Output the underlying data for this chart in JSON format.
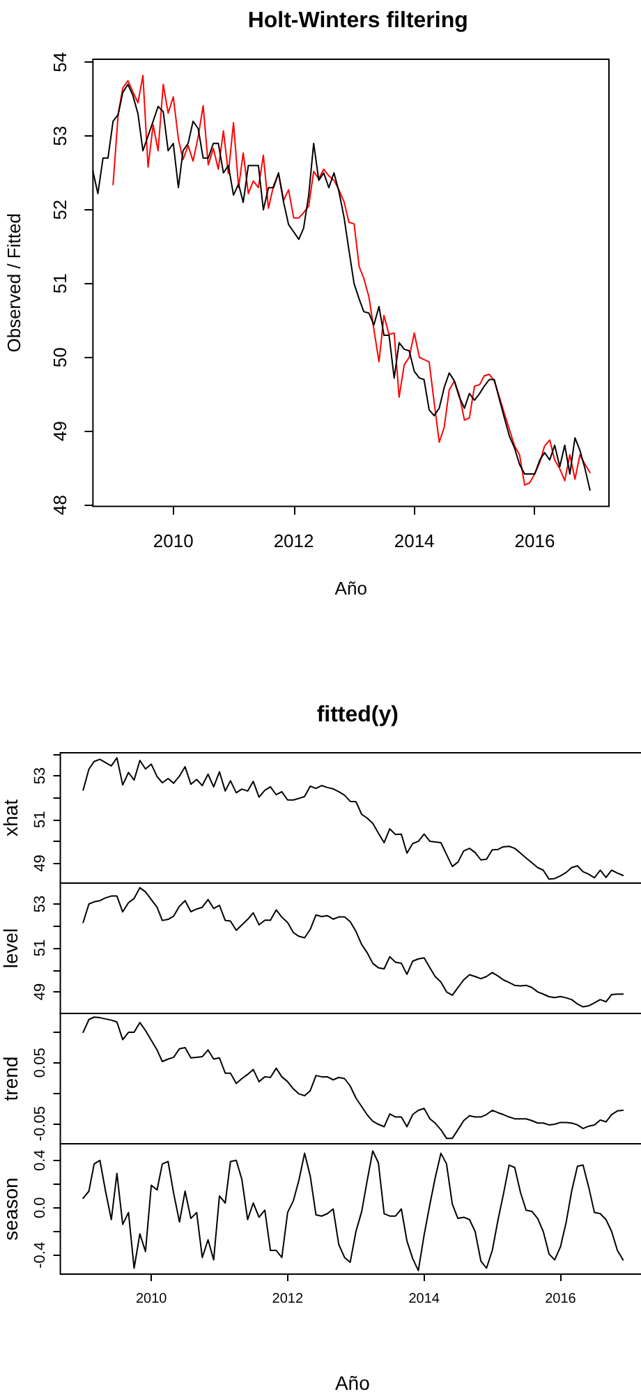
{
  "chart_data": [
    {
      "type": "line",
      "title": "Holt-Winters filtering",
      "xlabel": "Año",
      "ylabel": "Observed / Fitted",
      "x": [
        "2008-09",
        "2008-10",
        "2008-11",
        "2008-12",
        "2009-01",
        "2009-02",
        "2009-03",
        "2009-04",
        "2009-05",
        "2009-06",
        "2009-07",
        "2009-08",
        "2009-09",
        "2009-10",
        "2009-11",
        "2009-12",
        "2010-01",
        "2010-02",
        "2010-03",
        "2010-04",
        "2010-05",
        "2010-06",
        "2010-07",
        "2010-08",
        "2010-09",
        "2010-10",
        "2010-11",
        "2010-12",
        "2011-01",
        "2011-02",
        "2011-03",
        "2011-04",
        "2011-05",
        "2011-06",
        "2011-07",
        "2011-08",
        "2011-09",
        "2011-10",
        "2011-11",
        "2011-12",
        "2012-01",
        "2012-02",
        "2012-03",
        "2012-04",
        "2012-05",
        "2012-06",
        "2012-07",
        "2012-08",
        "2012-09",
        "2012-10",
        "2012-11",
        "2012-12",
        "2013-01",
        "2013-02",
        "2013-03",
        "2013-04",
        "2013-05",
        "2013-06",
        "2013-07",
        "2013-08",
        "2013-09",
        "2013-10",
        "2013-11",
        "2013-12",
        "2014-01",
        "2014-02",
        "2014-03",
        "2014-04",
        "2014-05",
        "2014-06",
        "2014-07",
        "2014-08",
        "2014-09",
        "2014-10",
        "2014-11",
        "2014-12",
        "2015-01",
        "2015-02",
        "2015-03",
        "2015-04",
        "2015-05",
        "2015-06",
        "2015-07",
        "2015-08",
        "2015-09",
        "2015-10",
        "2015-11",
        "2015-12",
        "2016-01",
        "2016-02",
        "2016-03",
        "2016-04",
        "2016-05",
        "2016-06",
        "2016-07",
        "2016-08",
        "2016-09",
        "2016-10",
        "2016-11",
        "2016-12"
      ],
      "series": [
        {
          "color": "#ff0000",
          "values": [
            null,
            null,
            null,
            null,
            52.34,
            53.3,
            53.65,
            53.75,
            53.6,
            53.45,
            53.82,
            52.58,
            53.15,
            52.8,
            53.7,
            53.31,
            53.53,
            52.96,
            52.68,
            52.87,
            52.66,
            52.99,
            53.41,
            52.61,
            52.83,
            52.55,
            53.07,
            52.49,
            53.18,
            52.3,
            52.77,
            52.22,
            52.39,
            52.3,
            52.74,
            52.02,
            52.33,
            52.49,
            52.13,
            52.27,
            51.89,
            51.89,
            51.96,
            52.05,
            52.52,
            52.42,
            52.55,
            52.46,
            52.4,
            52.27,
            52.11,
            51.83,
            51.81,
            51.23,
            51.07,
            50.82,
            50.38,
            49.94,
            50.57,
            50.31,
            50.33,
            49.46,
            49.9,
            50.0,
            50.33,
            50.0,
            49.97,
            49.94,
            49.4,
            48.85,
            49.05,
            49.56,
            49.68,
            49.49,
            49.15,
            49.18,
            49.61,
            49.63,
            49.75,
            49.77,
            49.68,
            49.46,
            49.24,
            49.02,
            48.8,
            48.68,
            48.27,
            48.3,
            48.42,
            48.58,
            48.8,
            48.88,
            48.61,
            48.49,
            48.33,
            48.68,
            48.35,
            48.68,
            48.55,
            48.44
          ]
        },
        {
          "color": "#000000",
          "values": [
            52.52,
            52.22,
            52.7,
            52.7,
            53.2,
            53.29,
            53.59,
            53.7,
            53.55,
            53.3,
            52.8,
            53.0,
            53.2,
            53.4,
            53.33,
            52.8,
            52.9,
            52.3,
            52.8,
            52.9,
            53.2,
            53.1,
            52.7,
            52.7,
            52.9,
            52.9,
            52.5,
            52.6,
            52.2,
            52.35,
            52.1,
            52.6,
            52.6,
            52.6,
            52.0,
            52.3,
            52.3,
            52.5,
            52.1,
            51.8,
            51.7,
            51.6,
            51.75,
            52.2,
            52.9,
            52.4,
            52.5,
            52.3,
            52.5,
            52.25,
            51.9,
            51.45,
            51.0,
            50.79,
            50.62,
            50.6,
            50.44,
            50.69,
            50.3,
            50.3,
            49.72,
            50.2,
            50.11,
            50.09,
            49.81,
            49.72,
            49.7,
            49.29,
            49.21,
            49.31,
            49.59,
            49.79,
            49.68,
            49.46,
            49.31,
            49.51,
            49.42,
            49.51,
            49.61,
            49.7,
            49.7,
            49.43,
            49.18,
            48.93,
            48.77,
            48.55,
            48.42,
            48.42,
            48.42,
            48.61,
            48.71,
            48.61,
            48.81,
            48.52,
            48.81,
            48.42,
            48.91,
            48.74,
            48.49,
            48.2
          ]
        }
      ],
      "xlim": [
        "2008-09-01",
        "2017-03-26"
      ],
      "xticks": [
        "2010",
        "2012",
        "2014",
        "2016"
      ],
      "ylim": [
        47.98,
        54.04
      ],
      "yticks": [
        48,
        49,
        50,
        51,
        52,
        53,
        54
      ]
    },
    {
      "type": "line",
      "title": "fitted(y)",
      "ylabel": "xhat",
      "x": [
        "2009-01",
        "2009-02",
        "2009-03",
        "2009-04",
        "2009-05",
        "2009-06",
        "2009-07",
        "2009-08",
        "2009-09",
        "2009-10",
        "2009-11",
        "2009-12",
        "2010-01",
        "2010-02",
        "2010-03",
        "2010-04",
        "2010-05",
        "2010-06",
        "2010-07",
        "2010-08",
        "2010-09",
        "2010-10",
        "2010-11",
        "2010-12",
        "2011-01",
        "2011-02",
        "2011-03",
        "2011-04",
        "2011-05",
        "2011-06",
        "2011-07",
        "2011-08",
        "2011-09",
        "2011-10",
        "2011-11",
        "2011-12",
        "2012-01",
        "2012-02",
        "2012-03",
        "2012-04",
        "2012-05",
        "2012-06",
        "2012-07",
        "2012-08",
        "2012-09",
        "2012-10",
        "2012-11",
        "2012-12",
        "2013-01",
        "2013-02",
        "2013-03",
        "2013-04",
        "2013-05",
        "2013-06",
        "2013-07",
        "2013-08",
        "2013-09",
        "2013-10",
        "2013-11",
        "2013-12",
        "2014-01",
        "2014-02",
        "2014-03",
        "2014-04",
        "2014-05",
        "2014-06",
        "2014-07",
        "2014-08",
        "2014-09",
        "2014-10",
        "2014-11",
        "2014-12",
        "2015-01",
        "2015-02",
        "2015-03",
        "2015-04",
        "2015-05",
        "2015-06",
        "2015-07",
        "2015-08",
        "2015-09",
        "2015-10",
        "2015-11",
        "2015-12",
        "2016-01",
        "2016-02",
        "2016-03",
        "2016-04",
        "2016-05",
        "2016-06",
        "2016-07",
        "2016-08",
        "2016-09",
        "2016-10",
        "2016-11",
        "2016-12"
      ],
      "series": [
        {
          "color": "#000000",
          "values": [
            52.34,
            53.3,
            53.65,
            53.75,
            53.6,
            53.45,
            53.82,
            52.58,
            53.15,
            52.8,
            53.7,
            53.31,
            53.53,
            52.96,
            52.68,
            52.87,
            52.66,
            52.99,
            53.41,
            52.61,
            52.83,
            52.55,
            53.07,
            52.49,
            53.18,
            52.3,
            52.77,
            52.22,
            52.39,
            52.3,
            52.74,
            52.02,
            52.33,
            52.49,
            52.13,
            52.27,
            51.89,
            51.89,
            51.96,
            52.05,
            52.52,
            52.42,
            52.55,
            52.46,
            52.4,
            52.27,
            52.11,
            51.83,
            51.81,
            51.23,
            51.07,
            50.82,
            50.38,
            49.94,
            50.57,
            50.31,
            50.33,
            49.46,
            49.9,
            50.0,
            50.33,
            50.0,
            49.97,
            49.94,
            49.4,
            48.85,
            49.05,
            49.56,
            49.68,
            49.49,
            49.15,
            49.18,
            49.61,
            49.63,
            49.75,
            49.77,
            49.68,
            49.46,
            49.24,
            49.02,
            48.8,
            48.68,
            48.27,
            48.3,
            48.42,
            48.58,
            48.8,
            48.88,
            48.61,
            48.49,
            48.33,
            48.68,
            48.35,
            48.68,
            48.55,
            48.44
          ]
        }
      ],
      "xlim": [
        "2008-09-01",
        "2017-03-26"
      ],
      "ylim": [
        48.09,
        54.05
      ],
      "yticks": [
        49,
        {
          "value": 50,
          "label": null
        },
        51,
        {
          "value": 52,
          "label": null
        },
        53,
        {
          "value": 54,
          "label": null
        }
      ],
      "tick_labels": "y"
    },
    {
      "type": "line",
      "ylabel": "level",
      "x": [
        "2009-01",
        "2009-02",
        "2009-03",
        "2009-04",
        "2009-05",
        "2009-06",
        "2009-07",
        "2009-08",
        "2009-09",
        "2009-10",
        "2009-11",
        "2009-12",
        "2010-01",
        "2010-02",
        "2010-03",
        "2010-04",
        "2010-05",
        "2010-06",
        "2010-07",
        "2010-08",
        "2010-09",
        "2010-10",
        "2010-11",
        "2010-12",
        "2011-01",
        "2011-02",
        "2011-03",
        "2011-04",
        "2011-05",
        "2011-06",
        "2011-07",
        "2011-08",
        "2011-09",
        "2011-10",
        "2011-11",
        "2011-12",
        "2012-01",
        "2012-02",
        "2012-03",
        "2012-04",
        "2012-05",
        "2012-06",
        "2012-07",
        "2012-08",
        "2012-09",
        "2012-10",
        "2012-11",
        "2012-12",
        "2013-01",
        "2013-02",
        "2013-03",
        "2013-04",
        "2013-05",
        "2013-06",
        "2013-07",
        "2013-08",
        "2013-09",
        "2013-10",
        "2013-11",
        "2013-12",
        "2014-01",
        "2014-02",
        "2014-03",
        "2014-04",
        "2014-05",
        "2014-06",
        "2014-07",
        "2014-08",
        "2014-09",
        "2014-10",
        "2014-11",
        "2014-12",
        "2015-01",
        "2015-02",
        "2015-03",
        "2015-04",
        "2015-05",
        "2015-06",
        "2015-07",
        "2015-08",
        "2015-09",
        "2015-10",
        "2015-11",
        "2015-12",
        "2016-01",
        "2016-02",
        "2016-03",
        "2016-04",
        "2016-05",
        "2016-06",
        "2016-07",
        "2016-08",
        "2016-09",
        "2016-10",
        "2016-11",
        "2016-12"
      ],
      "series": [
        {
          "color": "#000000",
          "values": [
            52.16,
            53.0,
            53.1,
            53.15,
            53.28,
            53.36,
            53.36,
            52.64,
            53.06,
            53.25,
            53.74,
            53.55,
            53.2,
            52.85,
            52.25,
            52.3,
            52.45,
            52.9,
            53.15,
            52.65,
            52.77,
            52.85,
            53.2,
            52.8,
            52.94,
            52.25,
            52.22,
            51.8,
            52.05,
            52.3,
            52.6,
            52.05,
            52.26,
            52.26,
            52.73,
            52.4,
            52.16,
            51.7,
            51.53,
            51.46,
            51.84,
            52.5,
            52.43,
            52.47,
            52.31,
            52.41,
            52.41,
            52.2,
            51.75,
            51.15,
            50.8,
            50.3,
            50.1,
            50.05,
            50.6,
            50.35,
            50.3,
            49.8,
            50.4,
            50.5,
            50.55,
            50.1,
            49.7,
            49.45,
            49.0,
            48.85,
            49.2,
            49.55,
            49.78,
            49.7,
            49.6,
            49.7,
            49.88,
            49.72,
            49.55,
            49.43,
            49.3,
            49.27,
            49.3,
            49.2,
            49.0,
            48.9,
            48.78,
            48.74,
            48.79,
            48.73,
            48.65,
            48.45,
            48.32,
            48.37,
            48.5,
            48.65,
            48.55,
            48.88,
            48.9,
            48.9
          ]
        }
      ],
      "xlim": [
        "2008-09-01",
        "2017-03-26"
      ],
      "ylim": [
        48.02,
        53.95
      ],
      "yticks": [
        49,
        {
          "value": 50,
          "label": null
        },
        51,
        {
          "value": 52,
          "label": null
        },
        53
      ],
      "tick_labels": "y"
    },
    {
      "type": "line",
      "ylabel": "trend",
      "x": [
        "2009-01",
        "2009-02",
        "2009-03",
        "2009-04",
        "2009-05",
        "2009-06",
        "2009-07",
        "2009-08",
        "2009-09",
        "2009-10",
        "2009-11",
        "2009-12",
        "2010-01",
        "2010-02",
        "2010-03",
        "2010-04",
        "2010-05",
        "2010-06",
        "2010-07",
        "2010-08",
        "2010-09",
        "2010-10",
        "2010-11",
        "2010-12",
        "2011-01",
        "2011-02",
        "2011-03",
        "2011-04",
        "2011-05",
        "2011-06",
        "2011-07",
        "2011-08",
        "2011-09",
        "2011-10",
        "2011-11",
        "2011-12",
        "2012-01",
        "2012-02",
        "2012-03",
        "2012-04",
        "2012-05",
        "2012-06",
        "2012-07",
        "2012-08",
        "2012-09",
        "2012-10",
        "2012-11",
        "2012-12",
        "2013-01",
        "2013-02",
        "2013-03",
        "2013-04",
        "2013-05",
        "2013-06",
        "2013-07",
        "2013-08",
        "2013-09",
        "2013-10",
        "2013-11",
        "2013-12",
        "2014-01",
        "2014-02",
        "2014-03",
        "2014-04",
        "2014-05",
        "2014-06",
        "2014-07",
        "2014-08",
        "2014-09",
        "2014-10",
        "2014-11",
        "2014-12",
        "2015-01",
        "2015-02",
        "2015-03",
        "2015-04",
        "2015-05",
        "2015-06",
        "2015-07",
        "2015-08",
        "2015-09",
        "2015-10",
        "2015-11",
        "2015-12",
        "2016-01",
        "2016-02",
        "2016-03",
        "2016-04",
        "2016-05",
        "2016-06",
        "2016-07",
        "2016-08",
        "2016-09",
        "2016-10",
        "2016-11",
        "2016-12"
      ],
      "series": [
        {
          "color": "#000000",
          "values": [
            0.1,
            0.121,
            0.125,
            0.124,
            0.122,
            0.12,
            0.117,
            0.088,
            0.1,
            0.1,
            0.116,
            0.103,
            0.087,
            0.071,
            0.052,
            0.056,
            0.059,
            0.073,
            0.075,
            0.058,
            0.059,
            0.06,
            0.071,
            0.056,
            0.058,
            0.033,
            0.033,
            0.016,
            0.024,
            0.031,
            0.039,
            0.019,
            0.027,
            0.026,
            0.041,
            0.027,
            0.019,
            0.007,
            -0.001,
            -0.004,
            0.004,
            0.029,
            0.027,
            0.027,
            0.022,
            0.026,
            0.024,
            0.012,
            -0.008,
            -0.022,
            -0.035,
            -0.046,
            -0.051,
            -0.055,
            -0.034,
            -0.039,
            -0.039,
            -0.055,
            -0.035,
            -0.028,
            -0.025,
            -0.042,
            -0.049,
            -0.06,
            -0.074,
            -0.074,
            -0.06,
            -0.045,
            -0.037,
            -0.039,
            -0.039,
            -0.035,
            -0.028,
            -0.032,
            -0.035,
            -0.039,
            -0.042,
            -0.042,
            -0.042,
            -0.045,
            -0.049,
            -0.049,
            -0.052,
            -0.051,
            -0.048,
            -0.048,
            -0.049,
            -0.052,
            -0.058,
            -0.054,
            -0.052,
            -0.044,
            -0.047,
            -0.035,
            -0.029,
            -0.028
          ]
        }
      ],
      "xlim": [
        "2008-09-01",
        "2017-03-26"
      ],
      "ylim": [
        -0.083,
        0.131
      ],
      "yticks": [
        -0.05,
        {
          "value": 0,
          "label": null
        },
        0.05,
        {
          "value": 0.1,
          "label": null
        }
      ],
      "tick_labels": "y"
    },
    {
      "type": "line",
      "ylabel": "season",
      "xlabel": "Año",
      "x": [
        "2009-01",
        "2009-02",
        "2009-03",
        "2009-04",
        "2009-05",
        "2009-06",
        "2009-07",
        "2009-08",
        "2009-09",
        "2009-10",
        "2009-11",
        "2009-12",
        "2010-01",
        "2010-02",
        "2010-03",
        "2010-04",
        "2010-05",
        "2010-06",
        "2010-07",
        "2010-08",
        "2010-09",
        "2010-10",
        "2010-11",
        "2010-12",
        "2011-01",
        "2011-02",
        "2011-03",
        "2011-04",
        "2011-05",
        "2011-06",
        "2011-07",
        "2011-08",
        "2011-09",
        "2011-10",
        "2011-11",
        "2011-12",
        "2012-01",
        "2012-02",
        "2012-03",
        "2012-04",
        "2012-05",
        "2012-06",
        "2012-07",
        "2012-08",
        "2012-09",
        "2012-10",
        "2012-11",
        "2012-12",
        "2013-01",
        "2013-02",
        "2013-03",
        "2013-04",
        "2013-05",
        "2013-06",
        "2013-07",
        "2013-08",
        "2013-09",
        "2013-10",
        "2013-11",
        "2013-12",
        "2014-01",
        "2014-02",
        "2014-03",
        "2014-04",
        "2014-05",
        "2014-06",
        "2014-07",
        "2014-08",
        "2014-09",
        "2014-10",
        "2014-11",
        "2014-12",
        "2015-01",
        "2015-02",
        "2015-03",
        "2015-04",
        "2015-05",
        "2015-06",
        "2015-07",
        "2015-08",
        "2015-09",
        "2015-10",
        "2015-11",
        "2015-12",
        "2016-01",
        "2016-02",
        "2016-03",
        "2016-04",
        "2016-05",
        "2016-06",
        "2016-07",
        "2016-08",
        "2016-09",
        "2016-10",
        "2016-11",
        "2016-12"
      ],
      "series": [
        {
          "color": "#000000",
          "values": [
            0.08,
            0.14,
            0.37,
            0.4,
            0.14,
            -0.1,
            0.29,
            -0.14,
            -0.04,
            -0.51,
            -0.22,
            -0.37,
            0.19,
            0.15,
            0.37,
            0.39,
            0.12,
            -0.12,
            0.14,
            -0.09,
            -0.04,
            -0.42,
            -0.27,
            -0.44,
            0.1,
            0.04,
            0.39,
            0.4,
            0.24,
            -0.1,
            0.04,
            -0.08,
            -0.02,
            -0.36,
            -0.36,
            -0.42,
            -0.04,
            0.06,
            0.23,
            0.46,
            0.27,
            -0.06,
            -0.07,
            -0.05,
            -0.01,
            -0.31,
            -0.42,
            -0.46,
            -0.2,
            -0.03,
            0.22,
            0.48,
            0.38,
            -0.05,
            -0.07,
            -0.07,
            -0.01,
            -0.28,
            -0.43,
            -0.53,
            -0.23,
            0.03,
            0.25,
            0.46,
            0.37,
            0.03,
            -0.09,
            -0.08,
            -0.1,
            -0.2,
            -0.45,
            -0.51,
            -0.36,
            -0.1,
            0.11,
            0.36,
            0.34,
            0.13,
            -0.02,
            -0.03,
            -0.09,
            -0.2,
            -0.39,
            -0.44,
            -0.33,
            -0.12,
            0.14,
            0.35,
            0.36,
            0.17,
            -0.04,
            -0.05,
            -0.1,
            -0.2,
            -0.36,
            -0.44
          ]
        }
      ],
      "xlim": [
        "2008-09-01",
        "2017-03-26"
      ],
      "xticks": [
        "2010",
        "2012",
        "2014",
        "2016"
      ],
      "ylim": [
        -0.56,
        0.54
      ],
      "yticks": [
        -0.4,
        {
          "value": -0.2,
          "label": null
        },
        {
          "value": 0,
          "label": "0.0"
        },
        {
          "value": 0.2,
          "label": null
        },
        0.4
      ]
    }
  ]
}
